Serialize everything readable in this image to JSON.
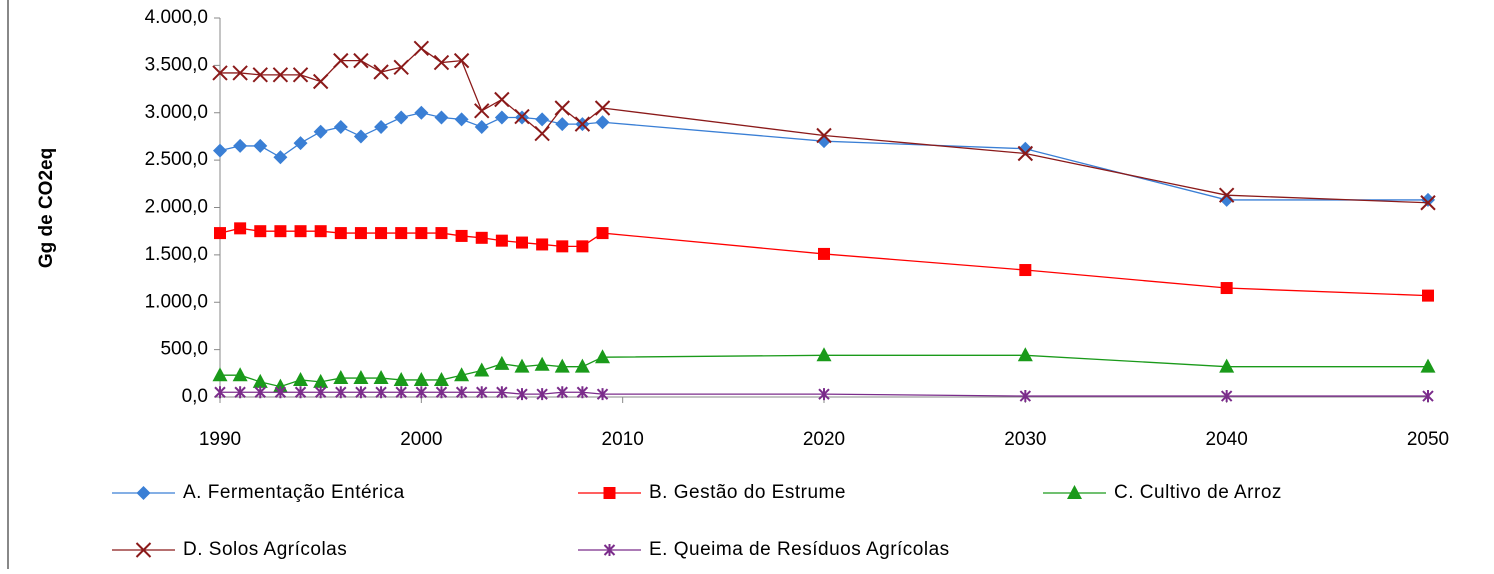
{
  "chart_data": {
    "type": "line",
    "y_label": "Gg de CO2eq",
    "x": [
      1990,
      1991,
      1992,
      1993,
      1994,
      1995,
      1996,
      1997,
      1998,
      1999,
      2000,
      2001,
      2002,
      2003,
      2004,
      2005,
      2006,
      2007,
      2008,
      2009,
      2020,
      2030,
      2040,
      2050
    ],
    "xlim": [
      1990,
      2050
    ],
    "xticks": [
      1990,
      2000,
      2010,
      2020,
      2030,
      2040,
      2050
    ],
    "ylim": [
      0,
      4000
    ],
    "yticks": [
      {
        "value": 0,
        "label": "0,0"
      },
      {
        "value": 500,
        "label": "500,0"
      },
      {
        "value": 1000,
        "label": "1.000,0"
      },
      {
        "value": 1500,
        "label": "1.500,0"
      },
      {
        "value": 2000,
        "label": "2.000,0"
      },
      {
        "value": 2500,
        "label": "2.500,0"
      },
      {
        "value": 3000,
        "label": "3.000,0"
      },
      {
        "value": 3500,
        "label": "3.500,0"
      },
      {
        "value": 4000,
        "label": "4.000,0"
      }
    ],
    "grid": false,
    "legend": "bottom",
    "series": [
      {
        "name": "A. Fermentação Entérica",
        "color": "#3a7fd5",
        "marker": "diamond",
        "values": [
          2600,
          2650,
          2650,
          2530,
          2680,
          2800,
          2850,
          2750,
          2850,
          2950,
          3000,
          2950,
          2930,
          2850,
          2950,
          2950,
          2930,
          2880,
          2880,
          2900,
          2700,
          2620,
          2080,
          2080
        ]
      },
      {
        "name": "B. Gestão do Estrume",
        "color": "#ff0000",
        "marker": "square",
        "values": [
          1730,
          1780,
          1750,
          1750,
          1750,
          1750,
          1730,
          1730,
          1730,
          1730,
          1730,
          1730,
          1700,
          1680,
          1650,
          1630,
          1610,
          1590,
          1590,
          1730,
          1510,
          1340,
          1150,
          1070
        ]
      },
      {
        "name": "C. Cultivo de Arroz",
        "color": "#1a9a1a",
        "marker": "triangle",
        "values": [
          230,
          230,
          160,
          110,
          180,
          160,
          200,
          200,
          200,
          180,
          180,
          180,
          230,
          280,
          350,
          320,
          340,
          320,
          320,
          420,
          440,
          440,
          320,
          320
        ]
      },
      {
        "name": "D. Solos Agrícolas",
        "color": "#8b1a1a",
        "marker": "x",
        "values": [
          3420,
          3420,
          3400,
          3400,
          3400,
          3330,
          3550,
          3550,
          3430,
          3480,
          3680,
          3530,
          3550,
          3020,
          3140,
          2960,
          2780,
          3050,
          2880,
          3050,
          2760,
          2570,
          2130,
          2050
        ]
      },
      {
        "name": "E. Queima de Resíduos Agrícolas",
        "color": "#7b2c8b",
        "marker": "star",
        "values": [
          50,
          50,
          50,
          50,
          50,
          50,
          50,
          50,
          50,
          50,
          50,
          50,
          50,
          50,
          50,
          30,
          30,
          50,
          50,
          30,
          30,
          10,
          10,
          10
        ]
      }
    ]
  }
}
